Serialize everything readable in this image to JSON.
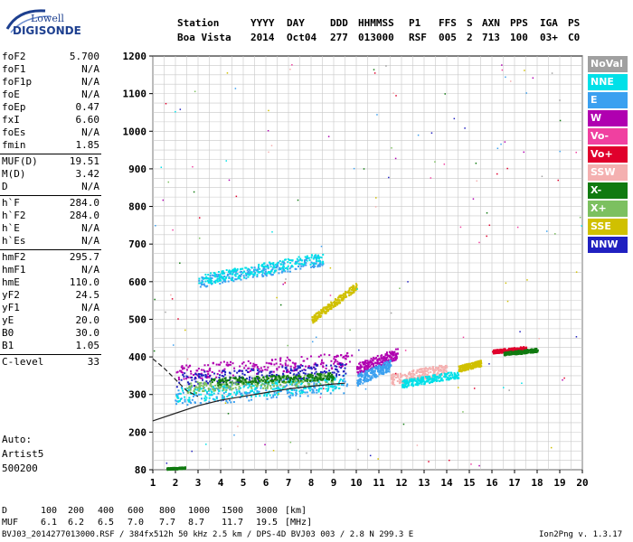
{
  "logo": {
    "top": "Lowell",
    "bottom": "DIGISONDE"
  },
  "header": {
    "labels": [
      "Station",
      "YYYY",
      "DAY",
      "DDD",
      "HHMMSS",
      "P1",
      "FFS",
      "S",
      "AXN",
      "PPS",
      "IGA",
      "PS"
    ],
    "values": [
      "Boa Vista",
      "2014",
      "Oct04",
      "277",
      "013000",
      "RSF",
      "005",
      "2",
      "713",
      "100",
      "03+",
      "C0"
    ]
  },
  "params": [
    {
      "group": [
        {
          "label": "foF2",
          "value": "5.700"
        },
        {
          "label": "foF1",
          "value": "N/A"
        },
        {
          "label": "foF1p",
          "value": "N/A"
        },
        {
          "label": "foE",
          "value": "N/A"
        },
        {
          "label": "foEp",
          "value": "0.47"
        },
        {
          "label": "fxI",
          "value": "6.60"
        },
        {
          "label": "foEs",
          "value": "N/A"
        },
        {
          "label": "fmin",
          "value": "1.85"
        }
      ]
    },
    {
      "group": [
        {
          "label": "MUF(D)",
          "value": "19.51"
        },
        {
          "label": "M(D)",
          "value": "3.42"
        },
        {
          "label": "D",
          "value": "N/A"
        }
      ]
    },
    {
      "group": [
        {
          "label": "h`F",
          "value": "284.0"
        },
        {
          "label": "h`F2",
          "value": "284.0"
        },
        {
          "label": "h`E",
          "value": "N/A"
        },
        {
          "label": "h`Es",
          "value": "N/A"
        }
      ]
    },
    {
      "group": [
        {
          "label": "hmF2",
          "value": "295.7"
        },
        {
          "label": "hmF1",
          "value": "N/A"
        },
        {
          "label": "hmE",
          "value": "110.0"
        },
        {
          "label": "yF2",
          "value": "24.5"
        },
        {
          "label": "yF1",
          "value": "N/A"
        },
        {
          "label": "yE",
          "value": "20.0"
        },
        {
          "label": "B0",
          "value": "30.0"
        },
        {
          "label": "B1",
          "value": "1.05"
        }
      ]
    },
    {
      "group": [
        {
          "label": "C-level",
          "value": "33"
        }
      ]
    }
  ],
  "auto": [
    "Auto:",
    "Artist5",
    "500200"
  ],
  "legend": [
    {
      "label": "NoVal",
      "color": "#a0a0a0"
    },
    {
      "label": "NNE",
      "color": "#00e0e8"
    },
    {
      "label": "E",
      "color": "#3aa0f0"
    },
    {
      "label": "W",
      "color": "#b000b0"
    },
    {
      "label": "Vo-",
      "color": "#f040a0"
    },
    {
      "label": "Vo+",
      "color": "#e0002c"
    },
    {
      "label": "SSW",
      "color": "#f4b0b0"
    },
    {
      "label": "X-",
      "color": "#107a10"
    },
    {
      "label": "X+",
      "color": "#7cc060"
    },
    {
      "label": "SSE",
      "color": "#d0c000"
    },
    {
      "label": "NNW",
      "color": "#2020c0"
    }
  ],
  "chart_data": {
    "type": "scatter",
    "x_ticks": [
      "1",
      "2",
      "3",
      "4",
      "5",
      "6",
      "7",
      "8",
      "9",
      "10",
      "11",
      "12",
      "13",
      "14",
      "15",
      "16",
      "17",
      "18",
      "19",
      "20"
    ],
    "y_ticks": [
      "80",
      "200",
      "300",
      "400",
      "500",
      "600",
      "700",
      "800",
      "900",
      "1000",
      "1100",
      "1200"
    ],
    "xlim": [
      1,
      20
    ],
    "ylim": [
      80,
      1200
    ],
    "grid": true,
    "legend_position": "right",
    "traces": [
      {
        "series": "E",
        "x": [
          1.9,
          9.6
        ],
        "y": [
          295,
          330
        ],
        "spread": 25
      },
      {
        "series": "NNE",
        "x": [
          2.0,
          9.5
        ],
        "y": [
          300,
          335
        ],
        "spread": 20
      },
      {
        "series": "W",
        "x": [
          2.0,
          9.8
        ],
        "y": [
          360,
          395
        ],
        "spread": 20
      },
      {
        "series": "NNW",
        "x": [
          2.0,
          9.5
        ],
        "y": [
          340,
          370
        ],
        "spread": 18
      },
      {
        "series": "X+",
        "x": [
          2.5,
          9.0
        ],
        "y": [
          320,
          345
        ],
        "spread": 15
      },
      {
        "series": "X-",
        "x": [
          3.5,
          9.0
        ],
        "y": [
          335,
          350
        ],
        "spread": 10
      },
      {
        "series": "E",
        "x": [
          3.0,
          8.5
        ],
        "y": [
          600,
          660
        ],
        "spread": 15
      },
      {
        "series": "NNE",
        "x": [
          3.0,
          8.5
        ],
        "y": [
          605,
          665
        ],
        "spread": 15
      },
      {
        "series": "SSE",
        "x": [
          8.0,
          10.0
        ],
        "y": [
          500,
          590
        ],
        "spread": 10
      },
      {
        "series": "W",
        "x": [
          10.0,
          11.8
        ],
        "y": [
          370,
          410
        ],
        "spread": 15
      },
      {
        "series": "E",
        "x": [
          10.0,
          11.5
        ],
        "y": [
          340,
          380
        ],
        "spread": 15
      },
      {
        "series": "SSW",
        "x": [
          11.5,
          14.0
        ],
        "y": [
          340,
          370
        ],
        "spread": 15
      },
      {
        "series": "NNE",
        "x": [
          12.0,
          14.5
        ],
        "y": [
          330,
          355
        ],
        "spread": 10
      },
      {
        "series": "SSE",
        "x": [
          14.5,
          15.5
        ],
        "y": [
          370,
          385
        ],
        "spread": 8
      },
      {
        "series": "Vo+",
        "x": [
          16.0,
          17.5
        ],
        "y": [
          415,
          425
        ],
        "spread": 5
      },
      {
        "series": "X-",
        "x": [
          16.5,
          18.0
        ],
        "y": [
          410,
          420
        ],
        "spread": 5
      },
      {
        "series": "X-",
        "x": [
          1.6,
          2.4
        ],
        "y": [
          85,
          88
        ],
        "spread": 3
      }
    ],
    "curves": [
      {
        "style": "solid",
        "x": [
          1.0,
          2.0,
          3.0,
          4.0,
          5.0,
          6.0,
          7.0,
          8.0,
          9.0,
          9.5
        ],
        "y": [
          230,
          250,
          270,
          285,
          295,
          305,
          315,
          322,
          328,
          330
        ]
      },
      {
        "style": "dashed",
        "x": [
          1.0,
          1.5,
          2.0,
          2.5,
          3.0
        ],
        "y": [
          395,
          370,
          340,
          310,
          295
        ]
      }
    ]
  },
  "footer": {
    "d_label": "D",
    "d_values": [
      "100",
      "200",
      "400",
      "600",
      "800",
      "1000",
      "1500",
      "3000",
      "[km]"
    ],
    "muf_label": "MUF",
    "muf_values": [
      "6.1",
      "6.2",
      "6.5",
      "7.0",
      "7.7",
      "8.7",
      "11.7",
      "19.5",
      "[MHz]"
    ],
    "file_info": "BVJ03_2014277013000.RSF / 384fx512h 50 kHz 2.5 km / DPS-4D BVJ03 003 / 2.8 N 299.3 E",
    "version": "Ion2Png v. 1.3.17"
  }
}
